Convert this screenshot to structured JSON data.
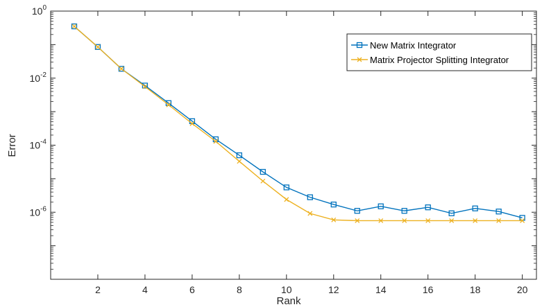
{
  "chart_data": {
    "type": "line",
    "title": "",
    "xlabel": "Rank",
    "ylabel": "Error",
    "xlim": [
      0,
      20.6
    ],
    "ylim": [
      1e-08,
      1
    ],
    "yscale": "log",
    "grid": false,
    "legend_position": "top-right",
    "x_ticks": [
      2,
      4,
      6,
      8,
      10,
      12,
      14,
      16,
      18,
      20
    ],
    "x_tick_labels": [
      "2",
      "4",
      "6",
      "8",
      "10",
      "12",
      "14",
      "16",
      "18",
      "20"
    ],
    "y_ticks": [
      {
        "value": 1,
        "base": "10",
        "exp": "0"
      },
      {
        "value": 0.01,
        "base": "10",
        "exp": "-2"
      },
      {
        "value": 0.0001,
        "base": "10",
        "exp": "-4"
      },
      {
        "value": 1e-06,
        "base": "10",
        "exp": "-6"
      }
    ],
    "x": [
      1,
      2,
      3,
      4,
      5,
      6,
      7,
      8,
      9,
      10,
      11,
      12,
      13,
      14,
      15,
      16,
      17,
      18,
      19,
      20
    ],
    "series": [
      {
        "name": "New Matrix Integrator",
        "color": "#0072BD",
        "marker": "square",
        "values": [
          0.35,
          0.085,
          0.019,
          0.006,
          0.0018,
          0.00052,
          0.00015,
          5e-05,
          1.6e-05,
          5.5e-06,
          2.8e-06,
          1.7e-06,
          1.1e-06,
          1.5e-06,
          1.1e-06,
          1.4e-06,
          9.3e-07,
          1.3e-06,
          1.05e-06,
          6.8e-07
        ]
      },
      {
        "name": "Matrix Projector Splitting Integrator",
        "color": "#EDB120",
        "marker": "x",
        "values": [
          0.35,
          0.085,
          0.019,
          0.0056,
          0.0016,
          0.00044,
          0.00013,
          3.3e-05,
          8.5e-06,
          2.4e-06,
          9.2e-07,
          5.9e-07,
          5.6e-07,
          5.6e-07,
          5.6e-07,
          5.6e-07,
          5.6e-07,
          5.6e-07,
          5.6e-07,
          5.6e-07
        ]
      }
    ]
  }
}
